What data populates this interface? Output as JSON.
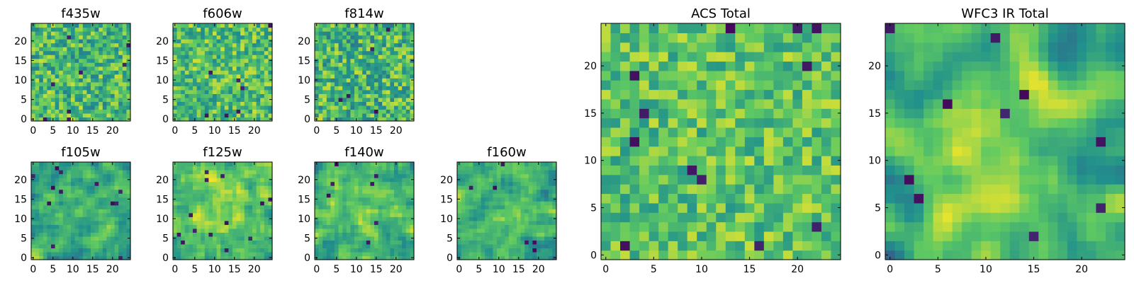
{
  "figure": {
    "colormap": "viridis",
    "colormap_stops": [
      "#440154",
      "#3b528b",
      "#21918c",
      "#5ec962",
      "#fde725"
    ]
  },
  "chart_data": [
    {
      "type": "heatmap",
      "title": "f435w",
      "size": 25,
      "xticks": [
        "0",
        "5",
        "10",
        "15",
        "20"
      ],
      "yticks": [
        "0",
        "5",
        "10",
        "15",
        "20"
      ],
      "xlim": [
        -0.5,
        24.5
      ],
      "ylim": [
        -0.5,
        24.5
      ],
      "seed": 11,
      "smooth": 0,
      "pattern": "noise",
      "mean": 0.67,
      "spread": 0.25,
      "grid": false
    },
    {
      "type": "heatmap",
      "title": "f606w",
      "size": 25,
      "xticks": [
        "0",
        "5",
        "10",
        "15",
        "20"
      ],
      "yticks": [
        "0",
        "5",
        "10",
        "15",
        "20"
      ],
      "xlim": [
        -0.5,
        24.5
      ],
      "ylim": [
        -0.5,
        24.5
      ],
      "seed": 23,
      "smooth": 0,
      "pattern": "noise",
      "mean": 0.7,
      "spread": 0.23,
      "grid": false
    },
    {
      "type": "heatmap",
      "title": "f814w",
      "size": 25,
      "xticks": [
        "0",
        "5",
        "10",
        "15",
        "20"
      ],
      "yticks": [
        "0",
        "5",
        "10",
        "15",
        "20"
      ],
      "xlim": [
        -0.5,
        24.5
      ],
      "ylim": [
        -0.5,
        24.5
      ],
      "seed": 37,
      "smooth": 0,
      "pattern": "noise",
      "mean": 0.66,
      "spread": 0.26,
      "grid": false
    },
    {
      "type": "heatmap",
      "title": "f105w",
      "size": 25,
      "xticks": [
        "0",
        "5",
        "10",
        "15",
        "20"
      ],
      "yticks": [
        "0",
        "5",
        "10",
        "15",
        "20"
      ],
      "xlim": [
        -0.5,
        24.5
      ],
      "ylim": [
        -0.5,
        24.5
      ],
      "seed": 41,
      "smooth": 1,
      "pattern": "blob",
      "mean": 0.66,
      "spread": 0.28,
      "grid": false
    },
    {
      "type": "heatmap",
      "title": "f125w",
      "size": 25,
      "xticks": [
        "0",
        "5",
        "10",
        "15",
        "20"
      ],
      "yticks": [
        "0",
        "5",
        "10",
        "15",
        "20"
      ],
      "xlim": [
        -0.5,
        24.5
      ],
      "ylim": [
        -0.5,
        24.5
      ],
      "seed": 53,
      "smooth": 1,
      "pattern": "blob",
      "mean": 0.7,
      "spread": 0.26,
      "grid": false
    },
    {
      "type": "heatmap",
      "title": "f140w",
      "size": 25,
      "xticks": [
        "0",
        "5",
        "10",
        "15",
        "20"
      ],
      "yticks": [
        "0",
        "5",
        "10",
        "15",
        "20"
      ],
      "xlim": [
        -0.5,
        24.5
      ],
      "ylim": [
        -0.5,
        24.5
      ],
      "seed": 67,
      "smooth": 1,
      "pattern": "blob",
      "mean": 0.68,
      "spread": 0.26,
      "grid": false
    },
    {
      "type": "heatmap",
      "title": "f160w",
      "size": 25,
      "xticks": [
        "0",
        "5",
        "10",
        "15",
        "20"
      ],
      "yticks": [
        "0",
        "5",
        "10",
        "15",
        "20"
      ],
      "xlim": [
        -0.5,
        24.5
      ],
      "ylim": [
        -0.5,
        24.5
      ],
      "seed": 79,
      "smooth": 1,
      "pattern": "blob",
      "mean": 0.63,
      "spread": 0.28,
      "grid": false
    },
    {
      "type": "heatmap",
      "title": "ACS Total",
      "size": 25,
      "xticks": [
        "0",
        "5",
        "10",
        "15",
        "20"
      ],
      "yticks": [
        "0",
        "5",
        "10",
        "15",
        "20"
      ],
      "xlim": [
        -0.5,
        24.5
      ],
      "ylim": [
        -0.5,
        24.5
      ],
      "seed": 97,
      "smooth": 0,
      "pattern": "noise",
      "mean": 0.72,
      "spread": 0.2,
      "grid": false
    },
    {
      "type": "heatmap",
      "title": "WFC3 IR Total",
      "size": 25,
      "xticks": [
        "0",
        "5",
        "10",
        "15",
        "20"
      ],
      "yticks": [
        "0",
        "5",
        "10",
        "15",
        "20"
      ],
      "xlim": [
        -0.5,
        24.5
      ],
      "ylim": [
        -0.5,
        24.5
      ],
      "seed": 113,
      "smooth": 2,
      "pattern": "blob",
      "mean": 0.66,
      "spread": 0.3,
      "grid": false
    }
  ]
}
